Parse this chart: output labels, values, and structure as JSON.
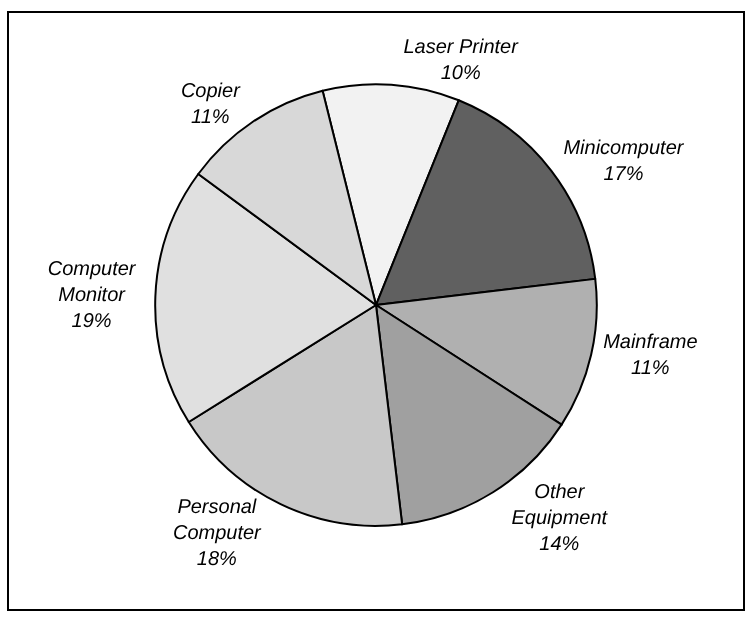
{
  "chart_data": {
    "type": "pie",
    "categories": [
      "Laser Printer",
      "Minicomputer",
      "Mainframe",
      "Other Equipment",
      "Personal Computer",
      "Computer Monitor",
      "Copier"
    ],
    "values": [
      10,
      17,
      11,
      14,
      18,
      19,
      11
    ],
    "value_labels": [
      "10%",
      "17%",
      "11%",
      "14%",
      "18%",
      "19%",
      "11%"
    ],
    "colors": [
      "#f2f2f2",
      "#606060",
      "#b0b0b0",
      "#a0a0a0",
      "#c8c8c8",
      "#e0e0e0",
      "#d8d8d8"
    ],
    "legend": false
  }
}
